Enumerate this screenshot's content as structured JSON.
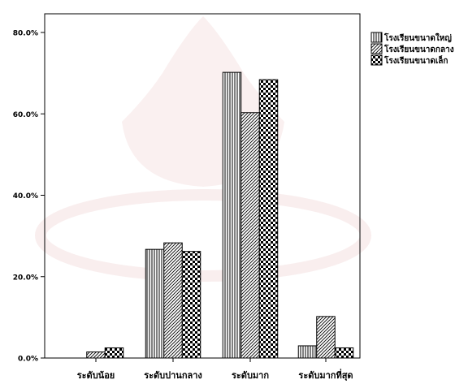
{
  "chart_data": {
    "type": "bar",
    "categories": [
      "ระดับน้อย",
      "ระดับปานกลาง",
      "ระดับมาก",
      "ระดับมากที่สุด"
    ],
    "series": [
      {
        "name": "โรงเรียนขนาดใหญ่",
        "pattern": "vertical-lines",
        "values": [
          0.0,
          26.7,
          70.2,
          3.0
        ]
      },
      {
        "name": "โรงเรียนขนาดกลาง",
        "pattern": "diagonal-lines",
        "values": [
          1.5,
          28.3,
          60.3,
          10.2
        ]
      },
      {
        "name": "โรงเรียนขนาดเล็ก",
        "pattern": "checkerboard",
        "values": [
          2.5,
          26.2,
          68.4,
          2.5
        ]
      }
    ],
    "yticks": [
      "0.0%",
      "20.0%",
      "40.0%",
      "60.0%",
      "80.0%"
    ],
    "ylim": [
      0,
      80
    ],
    "title": "",
    "xlabel": "",
    "ylabel": "",
    "legend_position": "top-right",
    "colors": {
      "bar_stroke": "#000000",
      "background": "#ffffff",
      "axis": "#000000",
      "watermark": "#f3dede"
    }
  }
}
